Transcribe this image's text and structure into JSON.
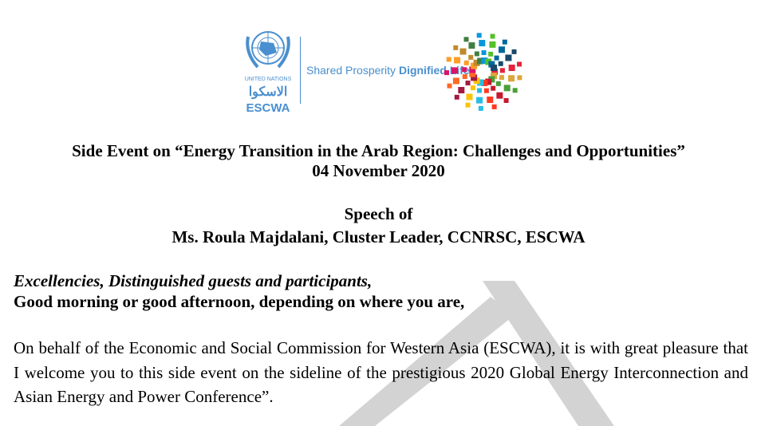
{
  "header": {
    "un_label": "UNITED NATIONS",
    "arabic_label": "الاسكوا",
    "escwa_label": "ESCWA",
    "tagline_regular": "Shared Prosperity",
    "tagline_bold": "Dignified Life",
    "brand_color": "#4a8fcf"
  },
  "document": {
    "title": "Side Event on “Energy Transition in the Arab Region: Challenges and Opportunities”",
    "date": "04 November 2020",
    "speech_of": "Speech of",
    "speaker": "Ms. Roula Majdalani, Cluster Leader, CCNRSC, ESCWA",
    "salutation": "Excellencies, Distinguished guests and participants,",
    "greeting": "Good morning or good afternoon, depending on where you are,",
    "paragraph": "On behalf of the Economic and Social Commission for Western Asia (ESCWA), it is with great pleasure that I welcome you to this side event on the sideline of the prestigious 2020 Global Energy Interconnection and Asian Energy and Power Conference”."
  }
}
